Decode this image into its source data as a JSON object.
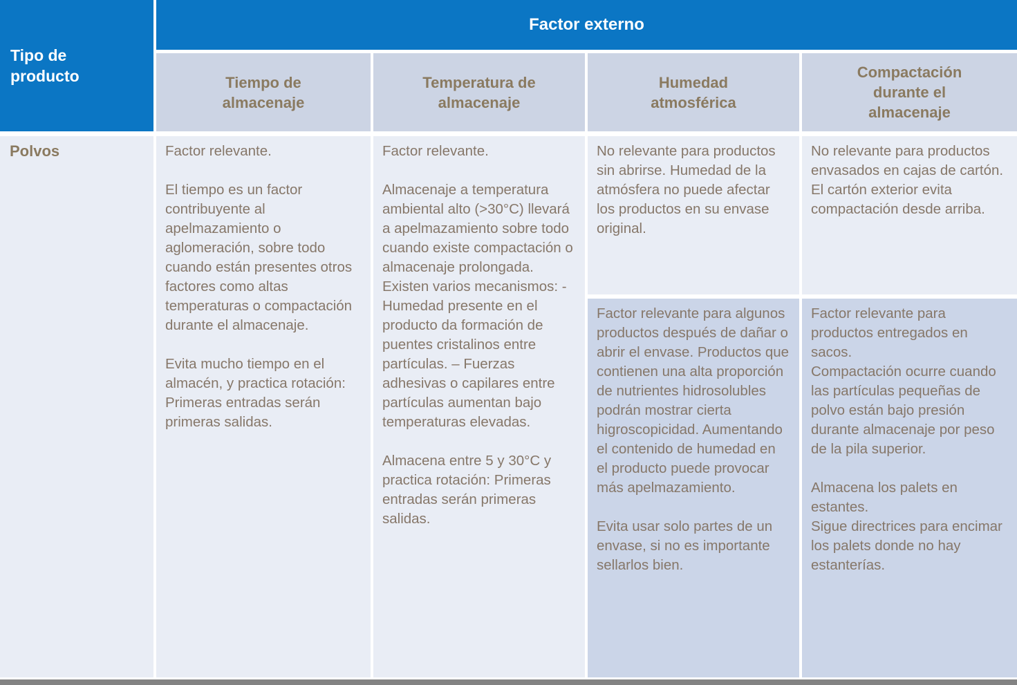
{
  "colors": {
    "header_blue": "#0b76c4",
    "column_header_bg": "#ccd4e4",
    "light_cell_bg": "#e9edf5",
    "dark_cell_bg": "#cbd5e8",
    "heading_text": "#8a7a60",
    "body_text": "#867769",
    "bottom_bar_gray": "#838383"
  },
  "table": {
    "corner_header": "Tipo de\nproducto",
    "group_header": "Factor externo",
    "columns": [
      {
        "label": "Tiempo de\nalmacenaje"
      },
      {
        "label": "Temperatura de\nalmacenaje"
      },
      {
        "label": "Humedad\natmosférica"
      },
      {
        "label": "Compactación\ndurante el\nalmacenaje"
      }
    ],
    "row_label": "Polvos",
    "cells": {
      "tiempo": "Factor relevante.\n\nEl tiempo  es un factor contribuyente al apelmazamiento o aglomeración, sobre todo cuando están presentes otros factores como altas temperaturas o compactación durante el almacenaje.\n\nEvita mucho tiempo en el almacén, y practica rotación: Primeras entradas serán primeras salidas.",
      "temperatura": "Factor relevante.\n\nAlmacenaje a temperatura ambiental alto (>30°C) llevará a apelmazamiento sobre todo cuando existe compactación o almacenaje prolongada. Existen varios mecanismos: - Humedad presente en el producto da formación de puentes cristalinos entre partículas. – Fuerzas adhesivas o capilares entre partículas aumentan bajo temperaturas elevadas.\n\nAlmacena entre 5 y 30°C y practica rotación: Primeras entradas serán primeras salidas.",
      "humedad_top": "No relevante para productos sin abrirse. Humedad de la atmósfera no puede afectar los productos en su envase original.",
      "humedad_bottom": "Factor relevante para algunos productos después de dañar o abrir el envase. Productos que contienen una alta proporción de nutrientes hidrosolubles podrán mostrar cierta higroscopicidad. Aumentando el contenido de humedad en el producto puede provocar más apelmazamiento.\n\nEvita usar solo partes de un envase, si no es importante sellarlos bien.",
      "compactacion_top": "No relevante para productos envasados en cajas de cartón. El cartón exterior evita compactación desde arriba.",
      "compactacion_bottom": "Factor relevante para productos entregados en sacos.\nCompactación ocurre cuando las partículas pequeñas de polvo están bajo presión durante almacenaje por peso de la pila superior.\n\nAlmacena los palets en estantes.\nSigue directrices para encimar los palets donde no hay estanterías."
    }
  }
}
